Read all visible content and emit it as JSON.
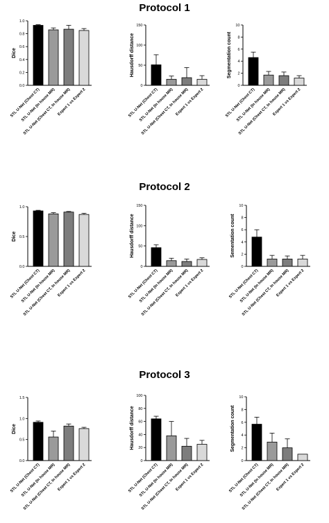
{
  "protocol_titles": [
    "Protocol 1",
    "Protocol 2",
    "Protocol 3"
  ],
  "colors": {
    "bars": [
      "#000000",
      "#9a9a9a",
      "#7d7d7d",
      "#d9d9d9"
    ],
    "stroke": "#000000"
  },
  "chart_data": [
    {
      "protocol": "Protocol 1",
      "type": "bar",
      "ylabel": "Dice",
      "ylim": [
        0,
        1.0
      ],
      "yticks": [
        "0.0",
        "0.2",
        "0.4",
        "0.6",
        "0.8",
        "1.0"
      ],
      "ytick_values": [
        0,
        0.2,
        0.4,
        0.6,
        0.8,
        1.0
      ],
      "categories": [
        "STL U-Net (Chest CT)",
        "STL U-Net (In house MR)",
        "STL U-Net (Chest CT, In house MR)",
        "Expert 1 vs Expert 2"
      ],
      "values": [
        0.93,
        0.86,
        0.87,
        0.85
      ],
      "errors": [
        0.01,
        0.03,
        0.06,
        0.03
      ]
    },
    {
      "protocol": "Protocol 1",
      "type": "bar",
      "ylabel": "Hausdorff distance",
      "ylim": [
        0,
        150
      ],
      "yticks": [
        "0",
        "50",
        "100",
        "150"
      ],
      "ytick_values": [
        0,
        50,
        100,
        150
      ],
      "categories": [
        "STL U-Net (Chest CT)",
        "STL U-Net (In house MR)",
        "STL U-Net (Chest CT, In house MR)",
        "Expert 1 vs Expert 2"
      ],
      "values": [
        51,
        15,
        19,
        15
      ],
      "errors": [
        25,
        8,
        25,
        9
      ]
    },
    {
      "protocol": "Protocol 1",
      "type": "bar",
      "ylabel": "Segmentation count",
      "ylim": [
        0,
        10
      ],
      "yticks": [
        "0",
        "2",
        "4",
        "6",
        "8",
        "10"
      ],
      "ytick_values": [
        0,
        2,
        4,
        6,
        8,
        10
      ],
      "categories": [
        "STL U-Net (Chest CT)",
        "STL U-Net (In house MR)",
        "STL U-Net (Chest CT, In house MR)",
        "Expert 1 vs Expert 2"
      ],
      "values": [
        4.6,
        1.7,
        1.6,
        1.2
      ],
      "errors": [
        0.9,
        0.6,
        0.6,
        0.4
      ]
    },
    {
      "protocol": "Protocol 2",
      "type": "bar",
      "ylabel": "Dice",
      "ylim": [
        0,
        1.0
      ],
      "yticks": [
        "0.0",
        "0.5",
        "1.0"
      ],
      "ytick_values": [
        0,
        0.5,
        1.0
      ],
      "categories": [
        "STL U-Net (Chest CT)",
        "STL U-Net (In house MR)",
        "STL U-Net (Chest CT, In house MR)",
        "Expert 1 vs Expert 2"
      ],
      "values": [
        0.93,
        0.88,
        0.91,
        0.87
      ],
      "errors": [
        0.01,
        0.02,
        0.01,
        0.02
      ]
    },
    {
      "protocol": "Protocol 2",
      "type": "bar",
      "ylabel": "Hausdorff distance",
      "ylim": [
        0,
        150
      ],
      "yticks": [
        "0",
        "50",
        "100",
        "150"
      ],
      "ytick_values": [
        0,
        50,
        100,
        150
      ],
      "categories": [
        "STL U-Net (Chest CT)",
        "STL U-Net (In house MR)",
        "STL U-Net (Chest CT, In house MR)",
        "Expert 1 vs Expert 2"
      ],
      "values": [
        46,
        14,
        12,
        17
      ],
      "errors": [
        7,
        6,
        6,
        4
      ]
    },
    {
      "protocol": "Protocol 2",
      "type": "bar",
      "ylabel": "Sementation count",
      "ylim": [
        0,
        10
      ],
      "yticks": [
        "0",
        "2",
        "4",
        "6",
        "8",
        "10"
      ],
      "ytick_values": [
        0,
        2,
        4,
        6,
        8,
        10
      ],
      "categories": [
        "STL U-Net (Chest CT)",
        "STL U-Net (In house MR)",
        "STL U-Net (Chest CT, In house MR)",
        "Expert 1 vs Expert 2"
      ],
      "values": [
        4.8,
        1.2,
        1.2,
        1.2
      ],
      "errors": [
        1.2,
        0.6,
        0.5,
        0.6
      ]
    },
    {
      "protocol": "Protocol 3",
      "type": "bar",
      "ylabel": "Dice",
      "ylim": [
        0,
        1.5
      ],
      "yticks": [
        "0.0",
        "0.5",
        "1.0",
        "1.5"
      ],
      "ytick_values": [
        0,
        0.5,
        1.0,
        1.5
      ],
      "categories": [
        "STL U-Net (Chest CT)",
        "STL U-Net (In house MR)",
        "STL U-Net (Chest CT, In house MR)",
        "Expert 1 vs Expert 2"
      ],
      "values": [
        0.91,
        0.56,
        0.82,
        0.76
      ],
      "errors": [
        0.03,
        0.14,
        0.05,
        0.03
      ]
    },
    {
      "protocol": "Protocol 3",
      "type": "bar",
      "ylabel": "Hausdorff distance",
      "ylim": [
        0,
        100
      ],
      "yticks": [
        "0",
        "20",
        "40",
        "60",
        "80",
        "100"
      ],
      "ytick_values": [
        0,
        20,
        40,
        60,
        80,
        100
      ],
      "categories": [
        "STL U-Net (Chest CT)",
        "STL U-Net (In house MR)",
        "STL U-Net (Chest CT, In house MR)",
        "Expert 1 vs Expert 2"
      ],
      "values": [
        64,
        38,
        22,
        25
      ],
      "errors": [
        4,
        22,
        12,
        6
      ]
    },
    {
      "protocol": "Protocol 3",
      "type": "bar",
      "ylabel": "Segmentation count",
      "ylim": [
        0,
        10
      ],
      "yticks": [
        "0",
        "2",
        "4",
        "6",
        "8",
        "10"
      ],
      "ytick_values": [
        0,
        2,
        4,
        6,
        8,
        10
      ],
      "categories": [
        "STL U-Net (Chest CT)",
        "STL U-Net (In house MR)",
        "STL U-Net (Chest CT, In house MR)",
        "Expert 1 vs Expert 2"
      ],
      "values": [
        5.7,
        2.9,
        2.0,
        1.0
      ],
      "errors": [
        1.1,
        1.4,
        1.4,
        0
      ]
    }
  ]
}
